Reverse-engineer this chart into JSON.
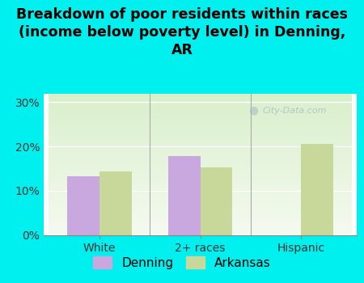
{
  "title": "Breakdown of poor residents within races\n(income below poverty level) in Denning,\nAR",
  "categories": [
    "White",
    "2+ races",
    "Hispanic"
  ],
  "denning_values": [
    0.133,
    0.178,
    0.0
  ],
  "arkansas_values": [
    0.143,
    0.153,
    0.205
  ],
  "denning_color": "#c9a8e0",
  "arkansas_color": "#c8d89a",
  "background_outer": "#00efef",
  "plot_bg_top": "#d8f0d0",
  "plot_bg_bottom": "#f4f8f2",
  "ylim": [
    0,
    0.32
  ],
  "yticks": [
    0.0,
    0.1,
    0.2,
    0.3
  ],
  "ytick_labels": [
    "0%",
    "10%",
    "20%",
    "30%"
  ],
  "bar_width": 0.32,
  "title_fontsize": 12.5,
  "tick_fontsize": 10,
  "legend_fontsize": 11,
  "watermark": "City-Data.com"
}
